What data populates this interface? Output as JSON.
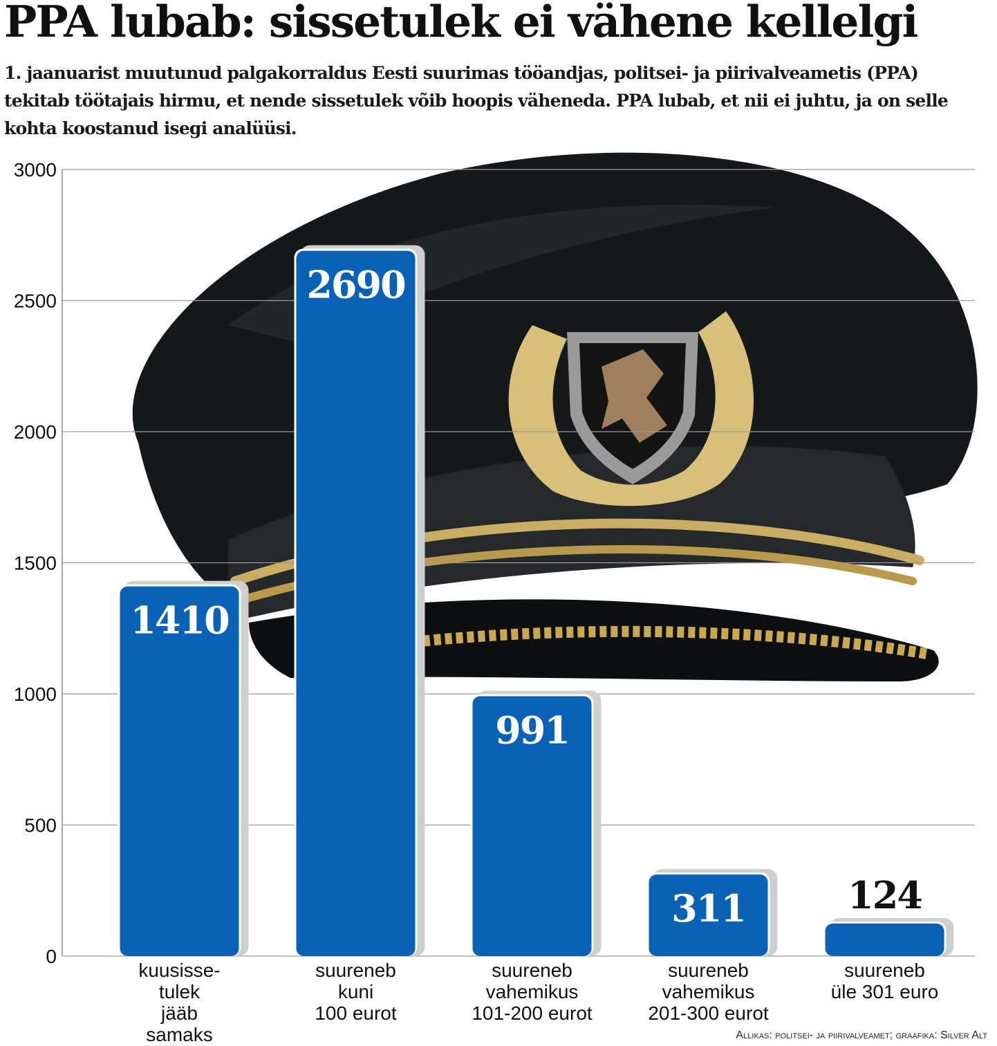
{
  "header": {
    "title": "PPA lubab: sissetulek ei vähene kellelgi",
    "subtitle": "1. jaanuarist muutunud palgakorraldus Eesti suurimas tööandjas, politsei- ja piirivalveametis (PPA) tekitab töötajais hirmu, et nende sissetulek võib hoopis väheneda. PPA lubab, et nii ei juhtu, ja on selle kohta koostanud isegi analüüsi."
  },
  "footer": {
    "source": "Allikas: politsei- ja piirivalveamet; graafika: Silver Alt"
  },
  "background_image": "police-officer-cap-with-lion-emblem",
  "chart_data": {
    "type": "bar",
    "categories": [
      "kuusisse-tulek jääb samaks",
      "suureneb kuni 100 eurot",
      "suureneb vahemikus 101-200 eurot",
      "suureneb vahemikus 201-300 eurot",
      "suureneb üle 301 euro"
    ],
    "category_lines": [
      [
        "kuusisse-",
        "tulek",
        "jääb",
        "samaks"
      ],
      [
        "suureneb",
        "kuni",
        "100 eurot"
      ],
      [
        "suureneb",
        "vahemikus",
        "101-200 eurot"
      ],
      [
        "suureneb",
        "vahemikus",
        "201-300 eurot"
      ],
      [
        "suureneb",
        "üle 301 euro"
      ]
    ],
    "values": [
      1410,
      2690,
      991,
      311,
      124
    ],
    "value_labels": [
      "1410",
      "2690",
      "991",
      "311",
      "124"
    ],
    "ylim": [
      0,
      3000
    ],
    "yticks": [
      0,
      500,
      1000,
      1500,
      2000,
      2500,
      3000
    ],
    "ytick_labels": [
      "0",
      "500",
      "1000",
      "1500",
      "2000",
      "2500",
      "3000"
    ],
    "grid": true,
    "bar_color": "#0a62b6",
    "shadow_color": "#cfcfcf",
    "xlabel": "",
    "ylabel": ""
  }
}
